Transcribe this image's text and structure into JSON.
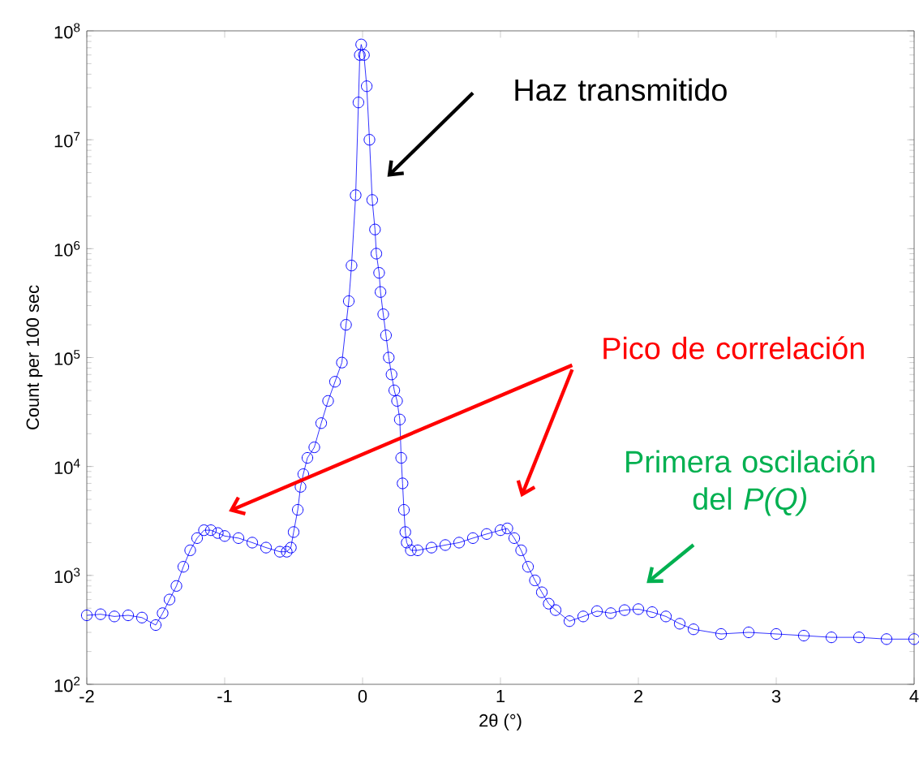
{
  "chart_data": {
    "type": "line",
    "xlabel": "2θ (°)",
    "ylabel": "Count per 100 sec",
    "log": "y",
    "marker": "circle",
    "line_style": "solid",
    "xlim": [
      -2,
      4
    ],
    "ylim": [
      100,
      100000000
    ],
    "xticks": [
      -2,
      -1,
      0,
      1,
      2,
      3,
      4
    ],
    "yticks": [
      {
        "value": 100,
        "label": "10$^{2}$"
      },
      {
        "value": 1000,
        "label": "10$^{3}$"
      },
      {
        "value": 10000,
        "label": "10$^{4}$"
      },
      {
        "value": 100000,
        "label": "10$^{5}$"
      },
      {
        "value": 1000000,
        "label": "10$^{6}$"
      },
      {
        "value": 10000000,
        "label": "10$^{7}$"
      },
      {
        "value": 100000000,
        "label": "10$^{8}$"
      }
    ],
    "annotations": [
      "Haz transmitido",
      "Pico de correlación",
      "Primera oscilación del *P(Q)*"
    ],
    "series": [
      {
        "color": "#0000ff",
        "x": [
          -2,
          -1.9,
          -1.8,
          -1.7,
          -1.6,
          -1.5,
          -1.45,
          -1.4,
          -1.35,
          -1.3,
          -1.25,
          -1.2,
          -1.15,
          -1.1,
          -1.05,
          -1,
          -0.9,
          -0.8,
          -0.7,
          -0.6,
          -0.55,
          -0.52,
          -0.5,
          -0.47,
          -0.45,
          -0.43,
          -0.4,
          -0.35,
          -0.3,
          -0.25,
          -0.2,
          -0.15,
          -0.12,
          -0.1,
          -0.08,
          -0.05,
          -0.03,
          -0.02,
          -0.01,
          0.01,
          0.03,
          0.05,
          0.07,
          0.09,
          0.1,
          0.12,
          0.13,
          0.15,
          0.17,
          0.19,
          0.21,
          0.23,
          0.25,
          0.27,
          0.28,
          0.29,
          0.3,
          0.31,
          0.32,
          0.35,
          0.4,
          0.5,
          0.6,
          0.7,
          0.8,
          0.9,
          1,
          1.05,
          1.1,
          1.15,
          1.2,
          1.25,
          1.3,
          1.35,
          1.4,
          1.5,
          1.6,
          1.7,
          1.8,
          1.9,
          2,
          2.1,
          2.2,
          2.3,
          2.4,
          2.6,
          2.8,
          3,
          3.2,
          3.4,
          3.6,
          3.8,
          4
        ],
        "values": [
          430,
          440,
          420,
          430,
          410,
          350,
          450,
          600,
          800,
          1200,
          1700,
          2200,
          2600,
          2600,
          2450,
          2300,
          2200,
          2000,
          1800,
          1650,
          1650,
          1800,
          2500,
          4000,
          6500,
          8500,
          12000,
          15000,
          25000,
          40000,
          60000,
          90000,
          200000,
          330000,
          700000,
          3100000,
          22000000,
          60000000,
          75000000,
          60000000,
          31000000,
          10000000,
          2800000,
          1500000,
          900000,
          600000,
          400000,
          250000,
          160000,
          100000,
          70000,
          50000,
          40000,
          27000,
          12000,
          7000,
          4000,
          2500,
          2000,
          1700,
          1700,
          1800,
          1900,
          2000,
          2200,
          2400,
          2600,
          2700,
          2200,
          1700,
          1200,
          900,
          700,
          550,
          480,
          380,
          420,
          470,
          450,
          480,
          490,
          460,
          420,
          360,
          320,
          290,
          300,
          290,
          280,
          270,
          270,
          260,
          260
        ]
      }
    ]
  }
}
